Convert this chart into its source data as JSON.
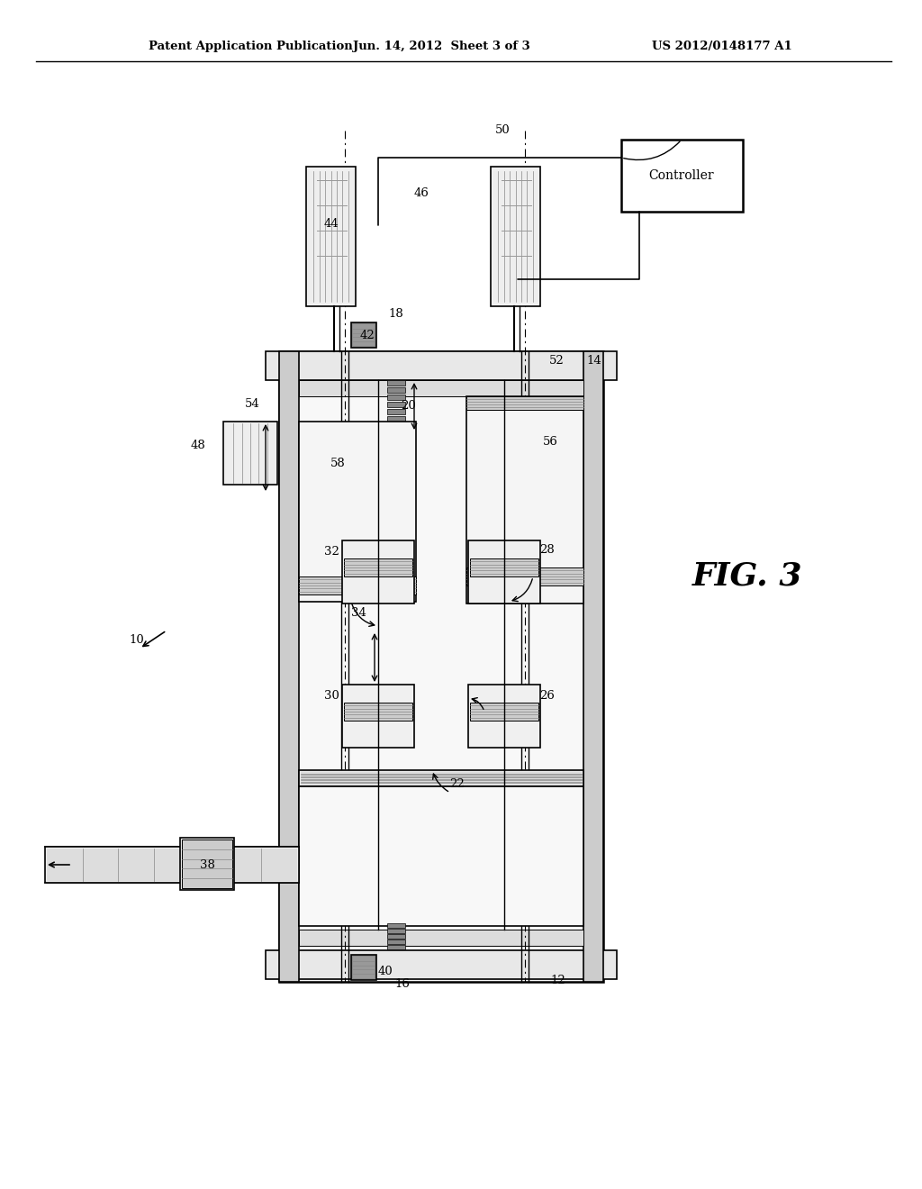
{
  "bg_color": "#ffffff",
  "header_left": "Patent Application Publication",
  "header_center": "Jun. 14, 2012  Sheet 3 of 3",
  "header_right": "US 2012/0148177 A1",
  "fig_label": "FIG. 3"
}
